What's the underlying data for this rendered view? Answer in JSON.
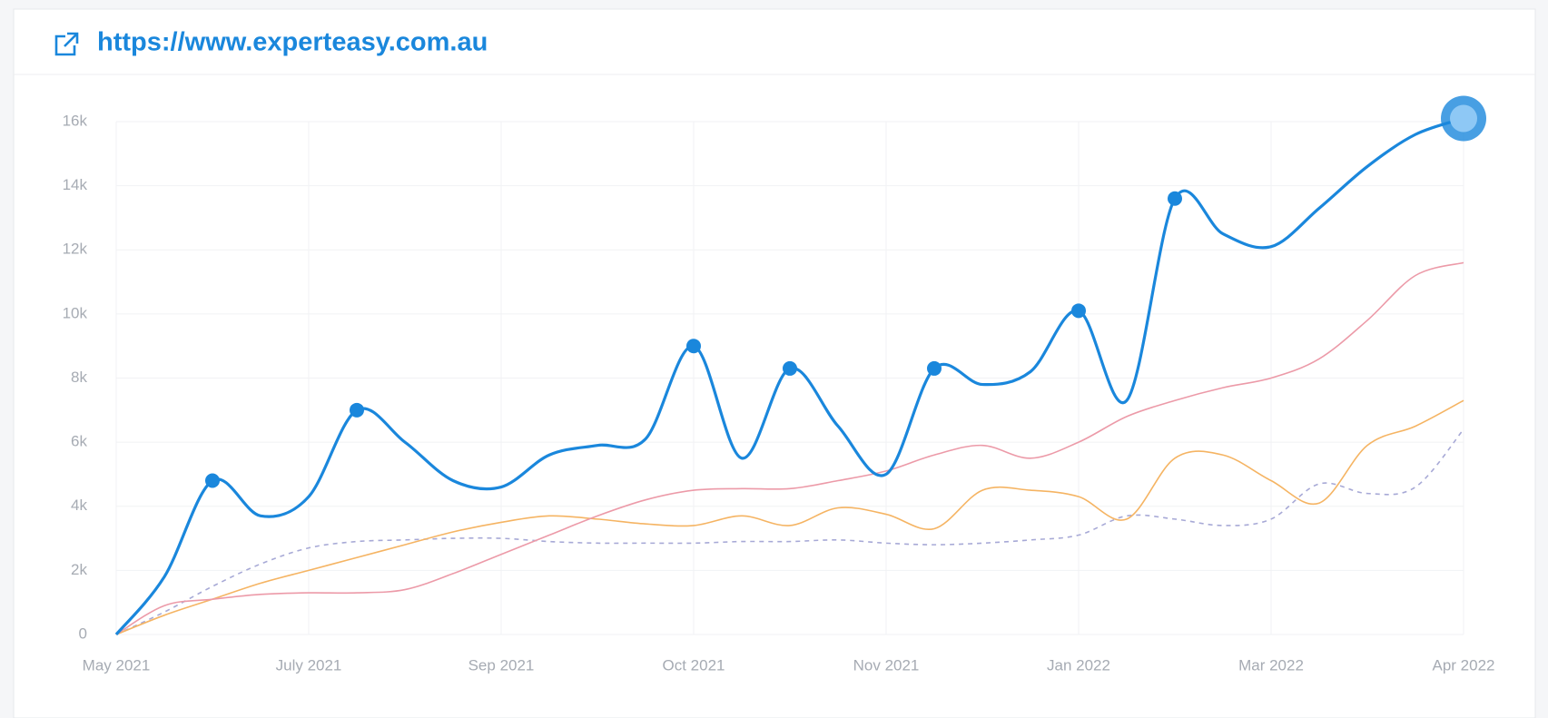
{
  "chart_data": {
    "type": "line",
    "title": "https://www.experteasy.com.au",
    "categories": [
      "May 2021",
      null,
      null,
      null,
      "July  2021",
      null,
      null,
      null,
      "Sep 2021",
      null,
      null,
      null,
      "Oct 2021",
      null,
      null,
      null,
      "Nov 2021",
      null,
      null,
      null,
      "Jan 2022",
      null,
      null,
      null,
      "Mar 2022",
      null,
      null,
      null,
      "Apr 2022"
    ],
    "series": [
      {
        "color": "#1a87dc",
        "values": [
          0,
          1800,
          4800,
          3700,
          4300,
          7000,
          6000,
          4800,
          4600,
          5600,
          5900,
          6100,
          9000,
          5500,
          8300,
          6500,
          5000,
          8300,
          7800,
          8200,
          10100,
          7300,
          13600,
          12500,
          12100,
          13300,
          14600,
          15600,
          16100
        ]
      },
      {
        "color": "#ec9aa8",
        "values": [
          0,
          900,
          1100,
          1250,
          1300,
          1300,
          1400,
          1900,
          2500,
          3100,
          3700,
          4200,
          4500,
          4550,
          4550,
          4800,
          5100,
          5600,
          5900,
          5500,
          6000,
          6800,
          7300,
          7700,
          8000,
          8600,
          9800,
          11200,
          11600
        ]
      },
      {
        "color": "#f5b463",
        "values": [
          0,
          600,
          1100,
          1600,
          2000,
          2400,
          2800,
          3200,
          3500,
          3700,
          3600,
          3450,
          3400,
          3700,
          3400,
          3950,
          3750,
          3300,
          4500,
          4500,
          4300,
          3600,
          5500,
          5600,
          4800,
          4100,
          5900,
          6500,
          7300
        ]
      },
      {
        "color": "#a7a9d6",
        "dashed": true,
        "values": [
          0,
          700,
          1500,
          2200,
          2700,
          2900,
          2950,
          3000,
          3000,
          2900,
          2850,
          2850,
          2850,
          2900,
          2900,
          2950,
          2850,
          2800,
          2850,
          2950,
          3100,
          3700,
          3600,
          3400,
          3600,
          4700,
          4400,
          4600,
          6400
        ]
      }
    ],
    "ylim": [
      0,
      16000
    ],
    "yticks": [
      0,
      {
        "value": 2000,
        "label": "2k"
      },
      {
        "value": 4000,
        "label": "4k"
      },
      {
        "value": 6000,
        "label": "6k"
      },
      {
        "value": 8000,
        "label": "8k"
      },
      {
        "value": 10000,
        "label": "10k"
      },
      {
        "value": 12000,
        "label": "12k"
      },
      {
        "value": 14000,
        "label": "14k"
      },
      {
        "value": 16000,
        "label": "16k"
      }
    ],
    "grid": true
  }
}
